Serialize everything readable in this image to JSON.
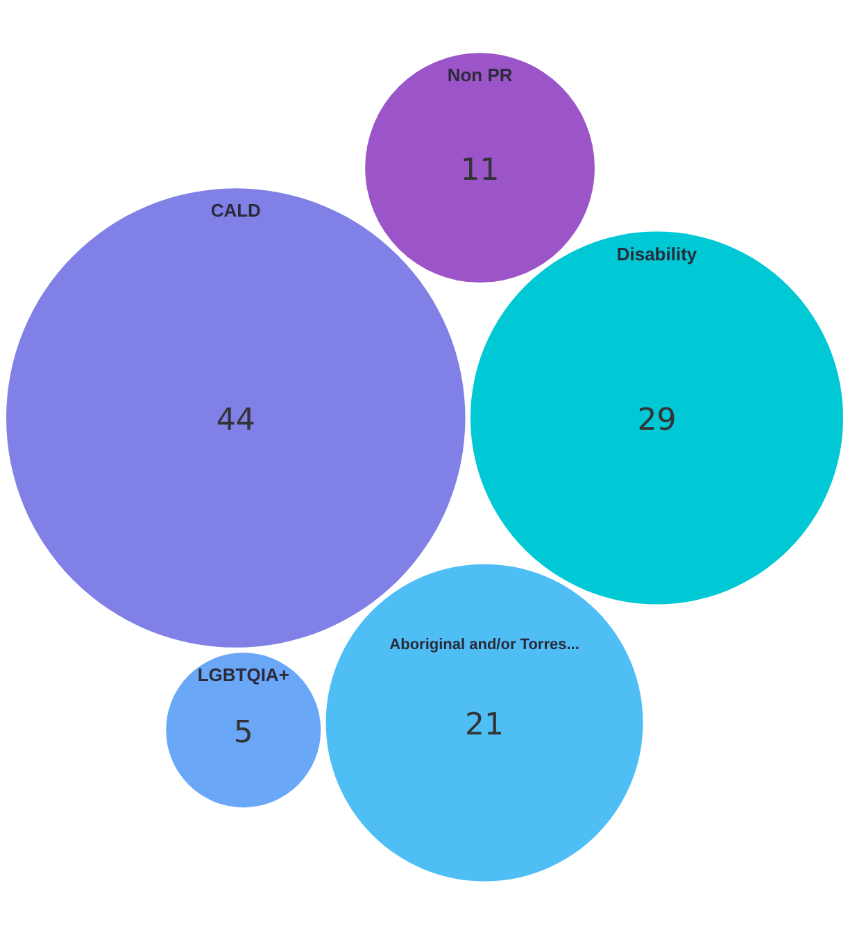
{
  "chart_data": {
    "type": "other",
    "categories": [
      "LGBTQIA+",
      "Non PR",
      "CALD",
      "Disability",
      "Aboriginal and/or Torres..."
    ],
    "values": [
      5,
      11,
      44,
      29,
      21
    ],
    "colors": [
      "#6aa8f7",
      "#9b55c8",
      "#8080e6",
      "#00c8d4",
      "#4fbef5"
    ],
    "data_labels": true
  }
}
